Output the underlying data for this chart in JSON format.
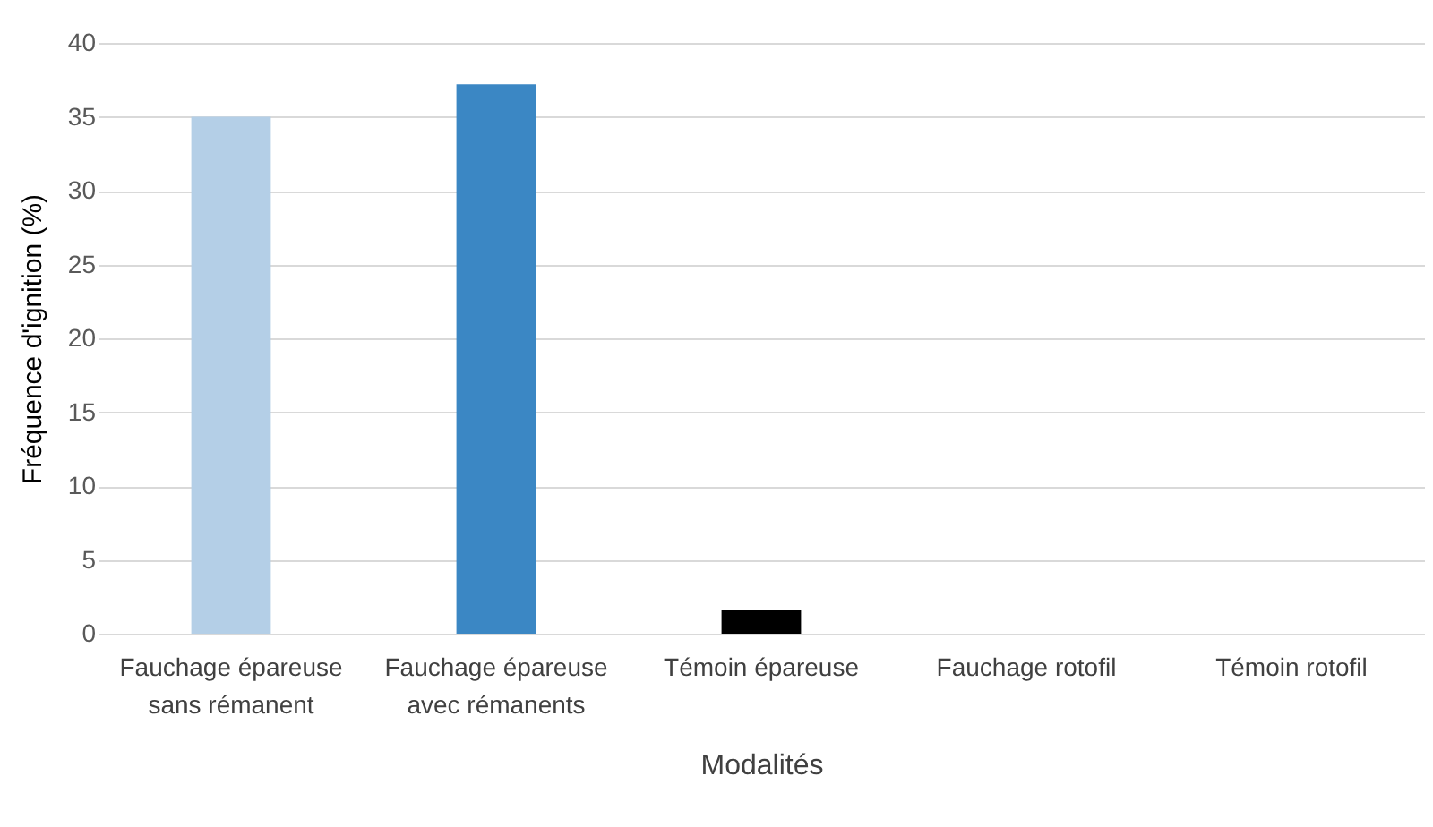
{
  "chart_data": {
    "type": "bar",
    "xlabel": "Modalités",
    "ylabel": "Fréquence d'ignition (%)",
    "categories": [
      "Fauchage épareuse sans rémanent",
      "Fauchage épareuse avec rémanents",
      "Témoin épareuse",
      "Fauchage rotofil",
      "Témoin rotofil"
    ],
    "values": [
      35,
      37.2,
      1.6,
      0,
      0
    ],
    "colors": [
      "#b4cfe7",
      "#3b87c4",
      "#000000",
      "#7f7f7f",
      "#7f7f7f"
    ],
    "ylim": [
      0,
      40
    ],
    "yticks": [
      0,
      5,
      10,
      15,
      20,
      25,
      30,
      35,
      40
    ],
    "grid": "y"
  }
}
